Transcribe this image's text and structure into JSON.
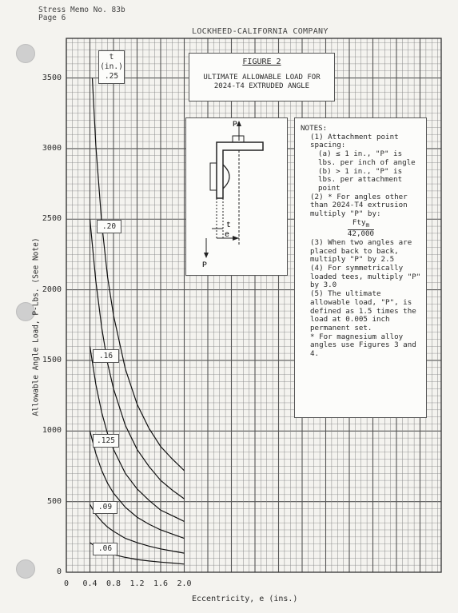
{
  "header": {
    "memo": "Stress Memo No. 83b",
    "page": "Page 6",
    "company": "LOCKHEED-CALIFORNIA COMPANY"
  },
  "figure": {
    "label": "FIGURE 2",
    "title": "ULTIMATE ALLOWABLE LOAD FOR 2024-T4 EXTRUDED ANGLE"
  },
  "sketch": {
    "load_top": "P",
    "load_bottom": "P",
    "thickness": "t",
    "eccentricity": "e"
  },
  "notes": {
    "heading": "NOTES:",
    "n1": "(1) Attachment point spacing:",
    "n1a": "(a) ≤ 1 in., \"P\" is lbs. per inch of angle",
    "n1b": "(b) > 1 in., \"P\" is lbs. per attachment point",
    "n2": "(2) * For angles other than 2024-T4 extrusion multiply \"P\" by:",
    "frac_num": "Fty",
    "frac_sub": "m",
    "frac_den": "42,000",
    "n3": "(3) When two angles are placed back to back, multiply \"P\" by 2.5",
    "n4": "(4) For symmetrically loaded tees, multiply \"P\" by 3.0",
    "n5": "(5) The ultimate allowable load, \"P\", is defined as 1.5 times the load at 0.005 inch permanent set.",
    "n6": "* For magnesium alloy angles use Figures 3 and 4."
  },
  "chart_data": {
    "type": "line",
    "xlabel": "Eccentricity, e (ins.)",
    "ylabel": "Allowable Angle Load, P-Lbs. (See Note)",
    "xlim": [
      0,
      2.0
    ],
    "ylim": [
      0,
      3500
    ],
    "xticks": [
      "0",
      "0.4",
      "0.8",
      "1.2",
      "1.6",
      "2.0"
    ],
    "yticks": [
      "0",
      "500",
      "1000",
      "1500",
      "2000",
      "2500",
      "3000",
      "3500"
    ],
    "grid": true,
    "series_title": "t\n(in.)",
    "series": [
      {
        "name": ".25",
        "x": [
          0.44,
          0.5,
          0.6,
          0.7,
          0.8,
          1.0,
          1.2,
          1.4,
          1.6,
          1.8,
          2.0
        ],
        "y": [
          3500,
          3020,
          2470,
          2090,
          1820,
          1440,
          1190,
          1020,
          890,
          800,
          720
        ]
      },
      {
        "name": ".20",
        "x": [
          0.4,
          0.5,
          0.6,
          0.7,
          0.8,
          1.0,
          1.2,
          1.4,
          1.6,
          1.8,
          2.0
        ],
        "y": [
          2500,
          2060,
          1730,
          1480,
          1300,
          1040,
          870,
          750,
          650,
          580,
          520
        ]
      },
      {
        "name": ".16",
        "x": [
          0.4,
          0.5,
          0.6,
          0.7,
          0.8,
          1.0,
          1.2,
          1.4,
          1.6,
          1.8,
          2.0
        ],
        "y": [
          1600,
          1330,
          1130,
          980,
          870,
          700,
          590,
          510,
          440,
          400,
          360
        ]
      },
      {
        "name": ".125",
        "x": [
          0.4,
          0.5,
          0.6,
          0.7,
          0.8,
          1.0,
          1.2,
          1.4,
          1.6,
          1.8,
          2.0
        ],
        "y": [
          1000,
          840,
          720,
          630,
          560,
          460,
          390,
          340,
          300,
          270,
          240
        ]
      },
      {
        "name": ".09",
        "x": [
          0.4,
          0.5,
          0.6,
          0.7,
          0.8,
          1.0,
          1.2,
          1.4,
          1.6,
          1.8,
          2.0
        ],
        "y": [
          480,
          410,
          360,
          320,
          290,
          240,
          210,
          185,
          165,
          150,
          135
        ]
      },
      {
        "name": ".06",
        "x": [
          0.4,
          0.5,
          0.6,
          0.7,
          0.8,
          1.0,
          1.2,
          1.4,
          1.6,
          1.8,
          2.0
        ],
        "y": [
          210,
          180,
          160,
          140,
          125,
          105,
          90,
          80,
          72,
          65,
          58
        ]
      }
    ]
  }
}
